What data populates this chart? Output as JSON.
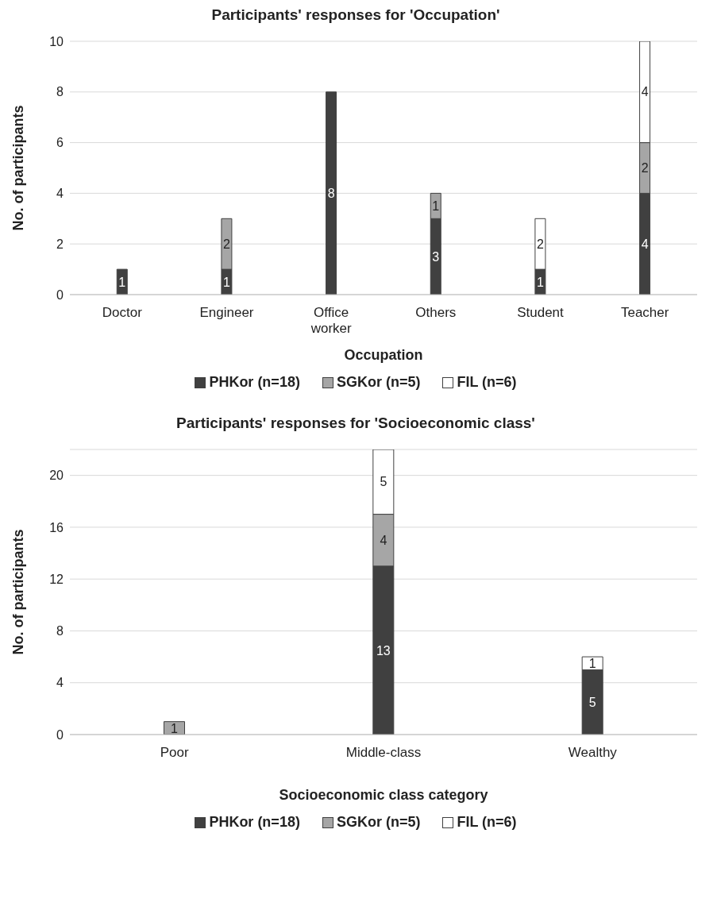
{
  "chart_data": [
    {
      "type": "bar",
      "title": "Participants' responses for 'Occupation'",
      "xlabel": "Occupation",
      "ylabel": "No. of participants",
      "categories": [
        "Doctor",
        "Engineer",
        "Office worker",
        "Others",
        "Student",
        "Teacher"
      ],
      "stacked": true,
      "series": [
        {
          "name": "PHKor (n=18)",
          "color": "#404040",
          "values": [
            1,
            1,
            8,
            3,
            1,
            4
          ]
        },
        {
          "name": "SGKor (n=5)",
          "color": "#a6a6a6",
          "values": [
            null,
            2,
            null,
            1,
            null,
            2
          ]
        },
        {
          "name": "FIL (n=6)",
          "color": "#ffffff",
          "values": [
            null,
            null,
            null,
            null,
            2,
            4
          ]
        }
      ],
      "ylim": [
        0,
        10
      ],
      "yticks": [
        0,
        2,
        4,
        6,
        8,
        10
      ],
      "grid": "y",
      "legend": "bottom",
      "data_labels": true
    },
    {
      "type": "bar",
      "title": "Participants' responses for 'Socioeconomic class'",
      "xlabel": "Socioeconomic class category",
      "ylabel": "No. of participants",
      "categories": [
        "Poor",
        "Middle-class",
        "Wealthy"
      ],
      "stacked": true,
      "series": [
        {
          "name": "PHKor (n=18)",
          "color": "#404040",
          "values": [
            null,
            13,
            5
          ]
        },
        {
          "name": "SGKor (n=5)",
          "color": "#a6a6a6",
          "values": [
            1,
            4,
            null
          ]
        },
        {
          "name": "FIL (n=6)",
          "color": "#ffffff",
          "values": [
            null,
            5,
            1
          ]
        }
      ],
      "ylim": [
        0,
        22
      ],
      "yticks": [
        0,
        4,
        8,
        12,
        16,
        20
      ],
      "grid": "y",
      "legend": "bottom",
      "data_labels": true
    }
  ]
}
